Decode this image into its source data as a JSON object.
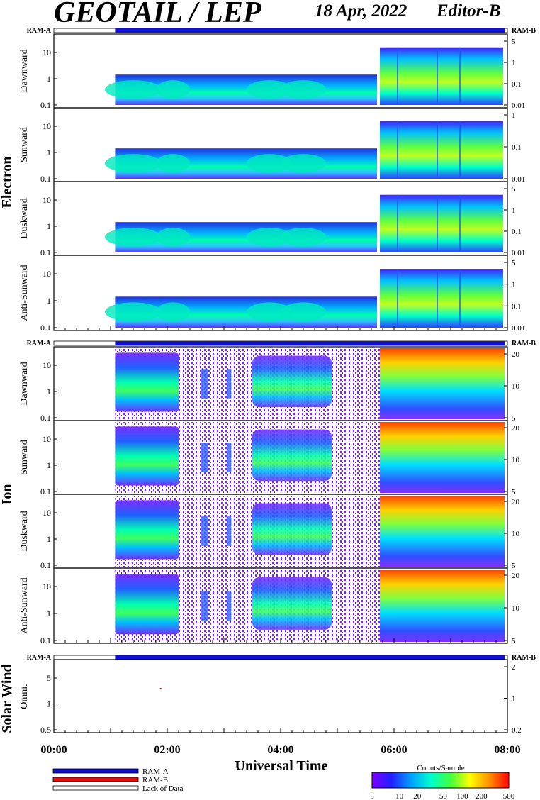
{
  "header": {
    "title": "GEOTAIL / LEP",
    "date": "18 Apr, 2022",
    "editor": "Editor-B"
  },
  "chart_data": {
    "type": "heatmap",
    "xlabel": "Universal Time",
    "x_ticks": [
      "00:00",
      "02:00",
      "04:00",
      "06:00",
      "08:00"
    ],
    "x_range_hours": [
      0,
      8
    ],
    "data_start_hour": 1.08,
    "groups": [
      {
        "name": "Electron",
        "ram_left": "RAM-A",
        "ram_right": "RAM-B",
        "panels": [
          {
            "label": "Dawnward",
            "left_ticks": [
              "10",
              "1",
              "0.1"
            ],
            "right_ticks": [
              "5",
              "1",
              "0.1",
              "0.01"
            ]
          },
          {
            "label": "Sunward",
            "left_ticks": [
              "10",
              "1",
              "0.1"
            ],
            "right_ticks": [
              "1",
              "0.1",
              "0.01"
            ]
          },
          {
            "label": "Duskward",
            "left_ticks": [
              "10",
              "1",
              "0.1"
            ],
            "right_ticks": [
              "5",
              "1",
              "0.1",
              "0.01"
            ]
          },
          {
            "label": "Anti-Sunward",
            "left_ticks": [
              "10",
              "1",
              "0.1"
            ],
            "right_ticks": [
              "5",
              "1",
              "0.1",
              "0.01"
            ]
          }
        ]
      },
      {
        "name": "Ion",
        "ram_left": "RAM-A",
        "ram_right": "RAM-B",
        "panels": [
          {
            "label": "Dawnward",
            "left_ticks": [
              "10",
              "1",
              "0.1"
            ],
            "right_ticks": [
              "20",
              "10",
              "5"
            ]
          },
          {
            "label": "Sunward",
            "left_ticks": [
              "10",
              "1",
              "0.1"
            ],
            "right_ticks": [
              "20",
              "10",
              "5"
            ]
          },
          {
            "label": "Duskward",
            "left_ticks": [
              "10",
              "1",
              "0.1"
            ],
            "right_ticks": [
              "20",
              "10",
              "5"
            ]
          },
          {
            "label": "Anti-Sunward",
            "left_ticks": [
              "10",
              "1",
              "0.1"
            ],
            "right_ticks": [
              "20",
              "10",
              "5"
            ]
          }
        ]
      },
      {
        "name": "Solar Wind",
        "ram_left": "RAM-A",
        "ram_right": "RAM-B",
        "panels": [
          {
            "label": "Omni.",
            "left_ticks": [
              "5",
              "1",
              "0.5"
            ],
            "right_ticks": [
              "2",
              "1",
              "0.2"
            ]
          }
        ]
      }
    ],
    "legend": {
      "items": [
        "RAM-A",
        "RAM-B",
        "Lack of Data"
      ],
      "colors": [
        "#1010d0",
        "#e01010",
        "#ffffff"
      ]
    },
    "colorbar": {
      "title": "Counts/Sample",
      "ticks": [
        "5",
        "10",
        "20",
        "50",
        "100",
        "200",
        "500"
      ],
      "colors": [
        "#7a00ff",
        "#2020ff",
        "#00a0ff",
        "#00ffcc",
        "#40ff40",
        "#ffff00",
        "#ff9000",
        "#ff0000"
      ]
    }
  }
}
